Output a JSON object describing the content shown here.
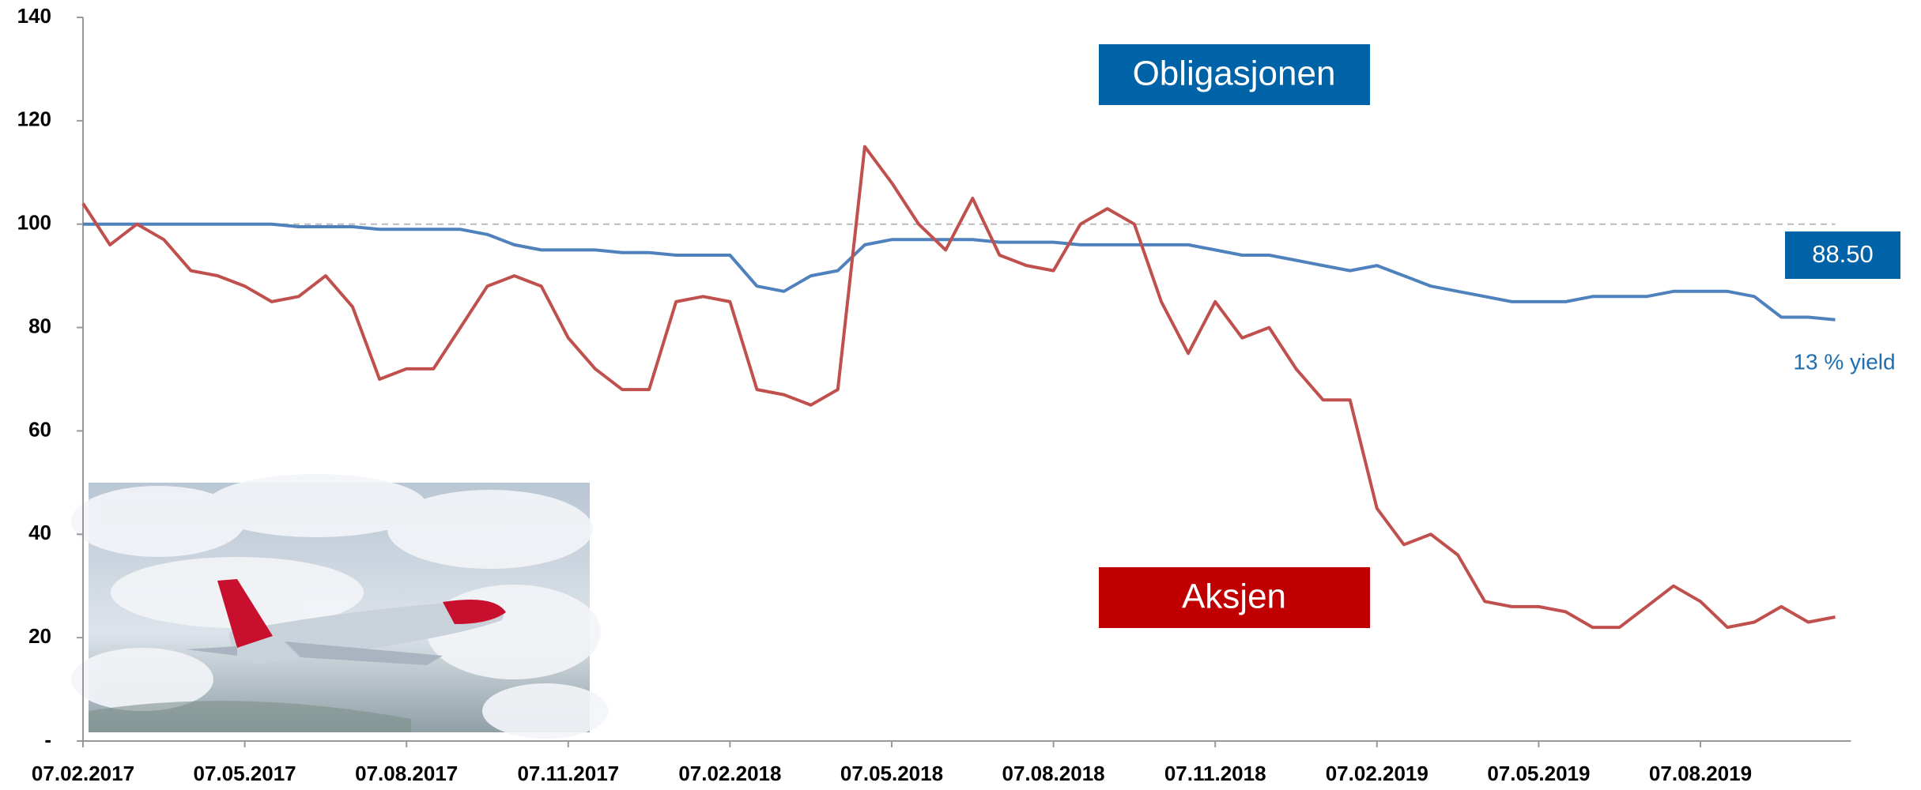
{
  "chart_data": {
    "type": "line",
    "categories": [
      "07.02.2017",
      null,
      null,
      null,
      null,
      null,
      "07.05.2017",
      null,
      null,
      null,
      null,
      null,
      "07.08.2017",
      null,
      null,
      null,
      null,
      null,
      "07.11.2017",
      null,
      null,
      null,
      null,
      null,
      "07.02.2018",
      null,
      null,
      null,
      null,
      null,
      "07.05.2018",
      null,
      null,
      null,
      null,
      null,
      "07.08.2018",
      null,
      null,
      null,
      null,
      null,
      "07.11.2018",
      null,
      null,
      null,
      null,
      null,
      "07.02.2019",
      null,
      null,
      null,
      null,
      null,
      "07.05.2019",
      null,
      null,
      null,
      null,
      null,
      "07.08.2019",
      null,
      null,
      null,
      null,
      null
    ],
    "series": [
      {
        "name": "Obligasjonen",
        "color": "#4f81bd",
        "values": [
          100,
          100,
          100,
          100,
          100,
          100,
          100,
          100,
          99.5,
          99.5,
          99.5,
          99,
          99,
          99,
          99,
          98,
          96,
          95,
          95,
          95,
          94.5,
          94.5,
          94,
          94,
          94,
          88,
          87,
          90,
          91,
          96,
          97,
          97,
          97,
          97,
          96.5,
          96.5,
          96.5,
          96,
          96,
          96,
          96,
          96,
          95,
          94,
          94,
          93,
          92,
          91,
          92,
          90,
          88,
          87,
          86,
          85,
          85,
          85,
          86,
          86,
          86,
          87,
          87,
          87,
          86,
          82,
          82,
          81.5
        ]
      },
      {
        "name": "Aksjen",
        "color": "#c0504d",
        "values": [
          104,
          96,
          100,
          97,
          91,
          90,
          88,
          85,
          86,
          90,
          84,
          70,
          72,
          72,
          80,
          88,
          90,
          88,
          78,
          72,
          68,
          68,
          85,
          86,
          85,
          68,
          67,
          65,
          68,
          115,
          108,
          100,
          95,
          105,
          94,
          92,
          91,
          100,
          103,
          100,
          85,
          75,
          85,
          78,
          80,
          72,
          66,
          66,
          45,
          38,
          40,
          36,
          27,
          26,
          26,
          25,
          22,
          22,
          26,
          30,
          27,
          22,
          23,
          26,
          23,
          24
        ]
      }
    ],
    "ylim": [
      0,
      140
    ],
    "yticks": [
      {
        "value": 0,
        "label": "-"
      },
      20,
      40,
      60,
      80,
      100,
      120,
      140
    ],
    "reference_line": 100,
    "annotations": [
      "88.50",
      "13 % yield"
    ]
  }
}
